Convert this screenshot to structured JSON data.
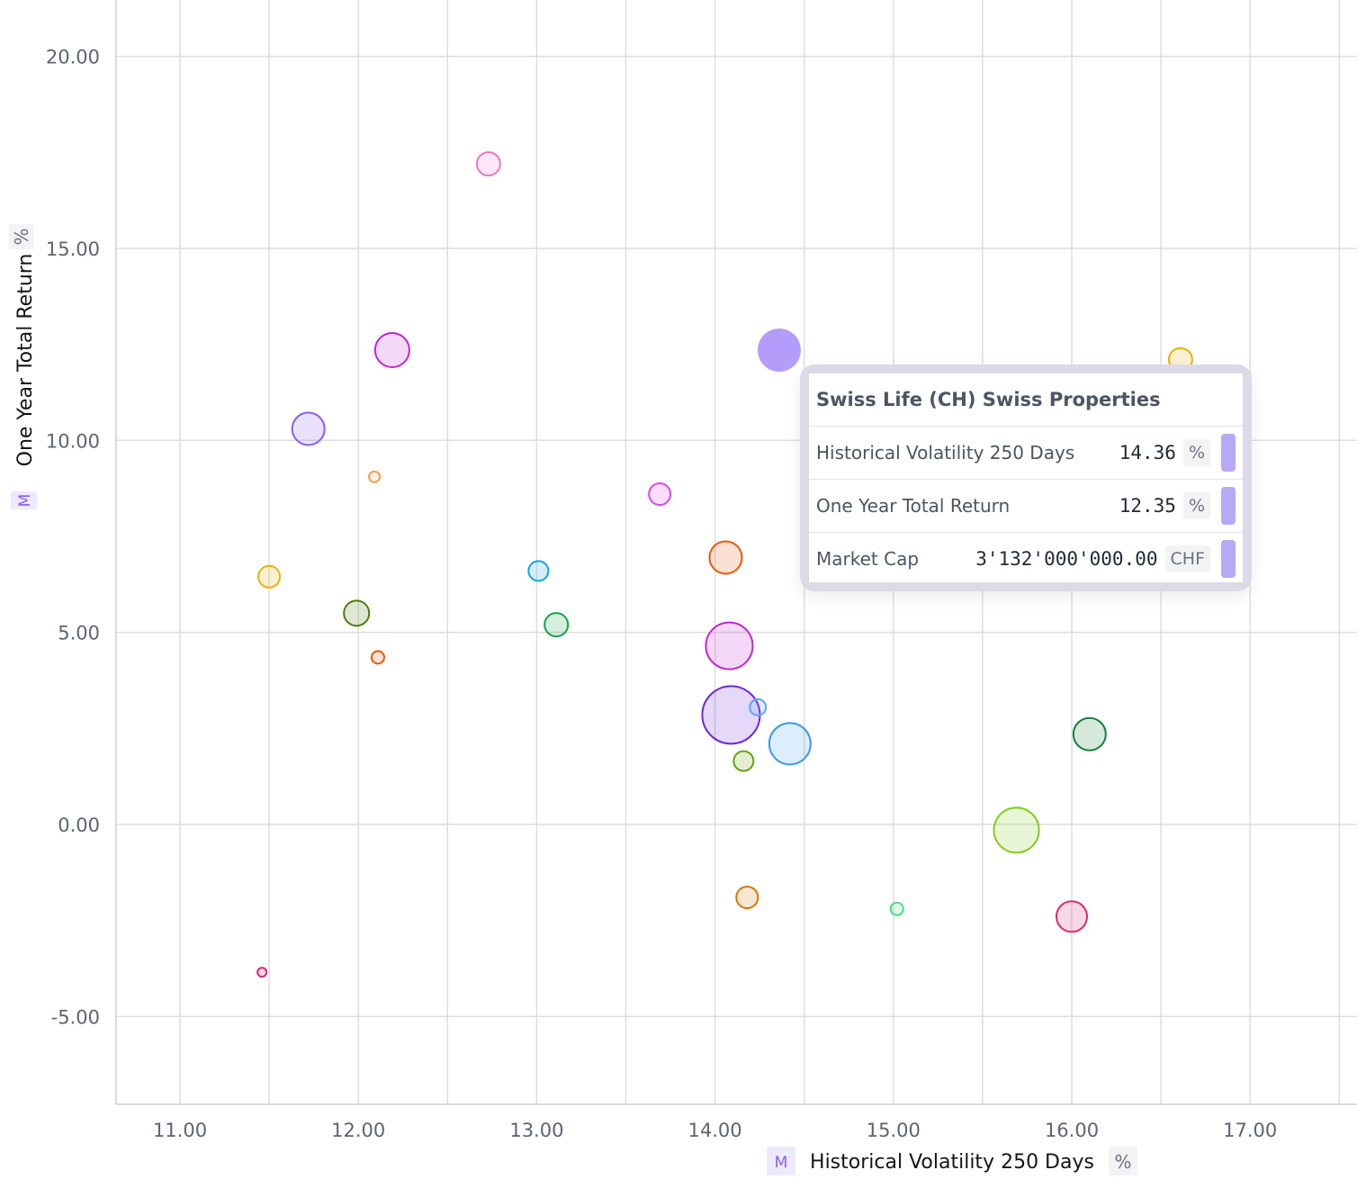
{
  "chart_data": {
    "type": "scatter",
    "subtype": "bubble",
    "xlabel": "Historical Volatility 250 Days",
    "ylabel": "One Year Total Return",
    "x_unit": "%",
    "y_unit": "%",
    "x_badge": "M",
    "y_badge": "M",
    "xlim": [
      10.65,
      17.52
    ],
    "ylim": [
      -7.3,
      21.4
    ],
    "x_ticks": [
      "11.00",
      "12.00",
      "13.00",
      "14.00",
      "15.00",
      "16.00",
      "17.00"
    ],
    "x_tick_values": [
      11,
      12,
      13,
      14,
      15,
      16,
      17
    ],
    "y_ticks": [
      "-5.00",
      "0.00",
      "5.00",
      "10.00",
      "15.00",
      "20.00"
    ],
    "y_tick_values": [
      -5,
      0,
      5,
      10,
      15,
      20
    ],
    "grid": true,
    "points": [
      {
        "x": 12.73,
        "y": 17.2,
        "r": 13,
        "color": "#e879c9"
      },
      {
        "x": 12.19,
        "y": 12.35,
        "r": 19,
        "color": "#c026d3"
      },
      {
        "x": 11.72,
        "y": 10.3,
        "r": 18,
        "color": "#8b5cf6"
      },
      {
        "x": 12.09,
        "y": 9.05,
        "r": 6,
        "color": "#f59e5b"
      },
      {
        "x": 11.5,
        "y": 6.45,
        "r": 12,
        "color": "#eab308"
      },
      {
        "x": 11.99,
        "y": 5.5,
        "r": 14,
        "color": "#4d7c0f"
      },
      {
        "x": 12.11,
        "y": 4.35,
        "r": 7,
        "color": "#ea580c"
      },
      {
        "x": 11.46,
        "y": -3.85,
        "r": 5,
        "color": "#db2777"
      },
      {
        "x": 13.01,
        "y": 6.6,
        "r": 11,
        "color": "#0ea5e9"
      },
      {
        "x": 13.11,
        "y": 5.2,
        "r": 13,
        "color": "#16a34a"
      },
      {
        "x": 13.69,
        "y": 8.6,
        "r": 12,
        "color": "#d946ef"
      },
      {
        "x": 14.06,
        "y": 6.95,
        "r": 18,
        "color": "#ea580c"
      },
      {
        "x": 14.36,
        "y": 12.35,
        "r": 24,
        "color": "#a78bfa",
        "filled": true
      },
      {
        "x": 14.08,
        "y": 4.65,
        "r": 26,
        "color": "#c026d3"
      },
      {
        "x": 14.09,
        "y": 2.85,
        "r": 32,
        "color": "#6d28d9"
      },
      {
        "x": 14.24,
        "y": 3.05,
        "r": 9,
        "color": "#60a5fa"
      },
      {
        "x": 14.42,
        "y": 2.1,
        "r": 23,
        "color": "#3b9ae8"
      },
      {
        "x": 14.16,
        "y": 1.65,
        "r": 11,
        "color": "#65a30d"
      },
      {
        "x": 14.18,
        "y": -1.9,
        "r": 12,
        "color": "#d97706"
      },
      {
        "x": 15.02,
        "y": -2.2,
        "r": 7,
        "color": "#4ade80"
      },
      {
        "x": 15.69,
        "y": -0.15,
        "r": 25,
        "color": "#84cc16"
      },
      {
        "x": 16.0,
        "y": -2.4,
        "r": 17,
        "color": "#db2777"
      },
      {
        "x": 16.1,
        "y": 2.35,
        "r": 18,
        "color": "#15803d"
      },
      {
        "x": 16.61,
        "y": 12.1,
        "r": 13,
        "color": "#eab308"
      }
    ]
  },
  "tooltip": {
    "title": "Swiss Life (CH) Swiss Properties",
    "rows": [
      {
        "label": "Historical Volatility 250 Days",
        "value": "14.36",
        "unit": "%",
        "color": "#b9a8f5"
      },
      {
        "label": "One Year Total Return",
        "value": "12.35",
        "unit": "%",
        "color": "#b9a8f5"
      },
      {
        "label": "Market Cap",
        "value": "3'132'000'000.00",
        "unit": "CHF",
        "color": "#b9a8f5"
      }
    ]
  }
}
